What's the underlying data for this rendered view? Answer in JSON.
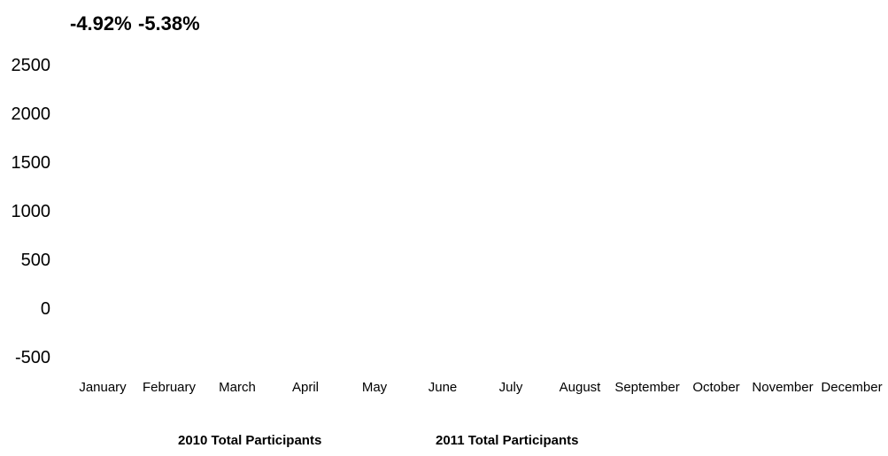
{
  "chart_data": {
    "type": "bar",
    "title": "",
    "xlabel": "",
    "ylabel": "",
    "annotations": [
      "-4.92%",
      "-5.38%"
    ],
    "categories": [
      "January",
      "February",
      "March",
      "April",
      "May",
      "June",
      "July",
      "August",
      "September",
      "October",
      "November",
      "December"
    ],
    "y_ticks": [
      "2500",
      "2000",
      "1500",
      "1000",
      "500",
      "0",
      "-500"
    ],
    "ylim": [
      -500,
      2500
    ],
    "grid": false,
    "legend_position": "bottom",
    "series": [
      {
        "name": "2010 Total Participants",
        "values": [
          null,
          null,
          null,
          null,
          null,
          null,
          null,
          null,
          null,
          null,
          null,
          null
        ]
      },
      {
        "name": "2011 Total Participants",
        "values": [
          null,
          null,
          null,
          null,
          null,
          null,
          null,
          null,
          null,
          null,
          null,
          null
        ]
      }
    ]
  }
}
